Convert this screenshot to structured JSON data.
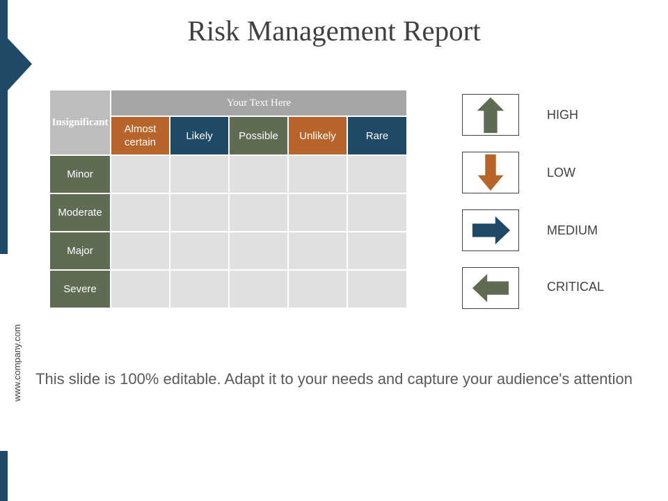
{
  "slide": {
    "title": "Risk Management Report",
    "website": "www.company.com",
    "footer": "This slide is 100% editable. Adapt it to your needs and capture your audience's attention"
  },
  "matrix": {
    "corner_label": "Insignificant",
    "header": "Your Text Here",
    "columns": [
      "Almost certain",
      "Likely",
      "Possible",
      "Unlikely",
      "Rare"
    ],
    "rows": [
      "Minor",
      "Moderate",
      "Major",
      "Severe"
    ]
  },
  "legend": [
    {
      "label": "HIGH",
      "icon": "arrow-up-icon",
      "color": "#5f6b53"
    },
    {
      "label": "LOW",
      "icon": "arrow-down-icon",
      "color": "#b8652c"
    },
    {
      "label": "MEDIUM",
      "icon": "arrow-right-icon",
      "color": "#1e4a68"
    },
    {
      "label": "CRITICAL",
      "icon": "arrow-left-icon",
      "color": "#5f6b53"
    }
  ],
  "colors": {
    "navy": "#1e4a68",
    "orange": "#b8652c",
    "olive": "#5f6b53",
    "header_gray": "#a6a6a6",
    "cell_gray": "#e0e0e0"
  }
}
